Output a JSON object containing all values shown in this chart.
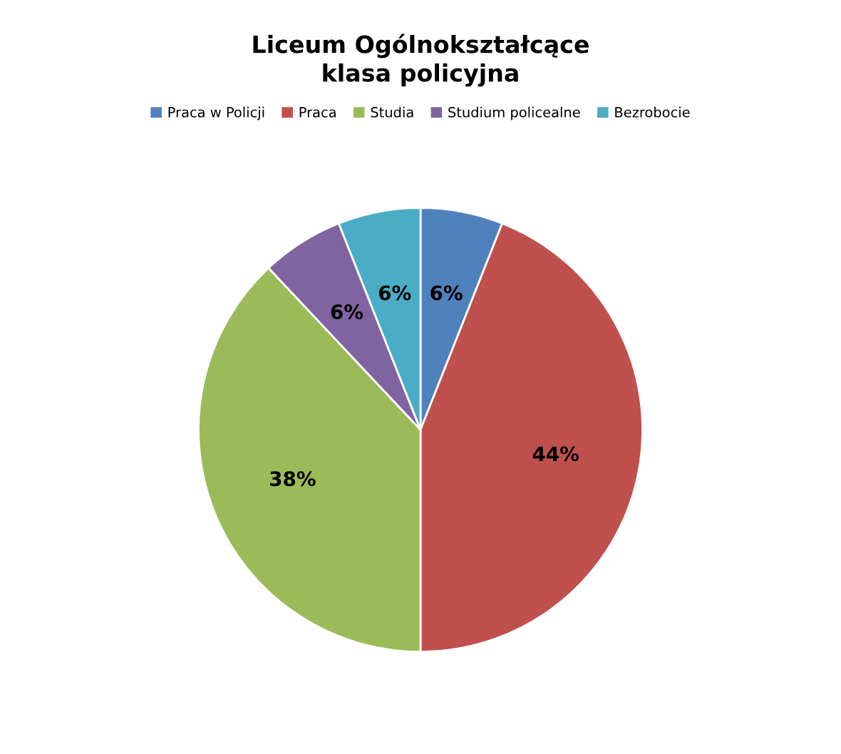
{
  "chart_data": {
    "type": "pie",
    "title": "Liceum Ogólnokształcące\nklasa policyjna",
    "categories": [
      "Praca w Policji",
      "Praca",
      "Studia",
      "Studium policealne",
      "Bezrobocie"
    ],
    "values": [
      6,
      44,
      38,
      6,
      6
    ],
    "colors": [
      "#4f81bd",
      "#c0504d",
      "#9bbb59",
      "#8064a2",
      "#4bacc6"
    ],
    "value_labels": [
      "6%",
      "44%",
      "38%",
      "6%",
      "6%"
    ],
    "legend": "top"
  }
}
